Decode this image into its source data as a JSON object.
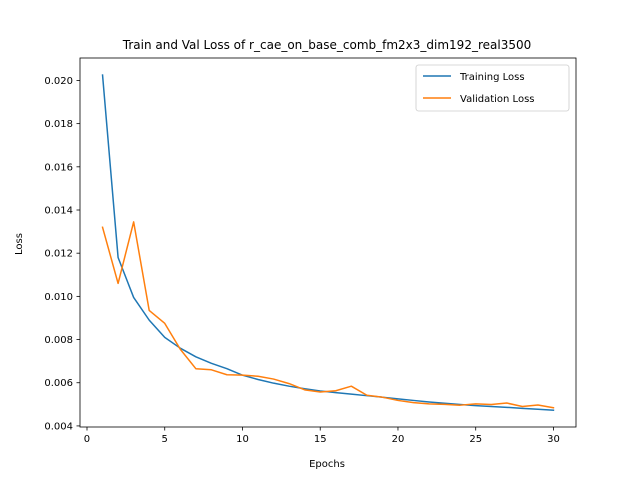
{
  "chart_data": {
    "type": "line",
    "title": "Train and Val Loss of r_cae_on_base_comb_fm2x3_dim192_real3500",
    "xlabel": "Epochs",
    "ylabel": "Loss",
    "xlim": [
      -0.45,
      31.45
    ],
    "ylim": [
      0.00395,
      0.02104
    ],
    "xticks": [
      0,
      5,
      10,
      15,
      20,
      25,
      30
    ],
    "yticks": [
      0.004,
      0.006,
      0.008,
      0.01,
      0.012,
      0.014,
      0.016,
      0.018,
      0.02
    ],
    "ytick_labels": [
      "0.004",
      "0.006",
      "0.008",
      "0.010",
      "0.012",
      "0.014",
      "0.016",
      "0.018",
      "0.020"
    ],
    "grid": false,
    "legend_position": "upper right",
    "x": [
      1,
      2,
      3,
      4,
      5,
      6,
      7,
      8,
      9,
      10,
      11,
      12,
      13,
      14,
      15,
      16,
      17,
      18,
      19,
      20,
      21,
      22,
      23,
      24,
      25,
      26,
      27,
      28,
      29,
      30
    ],
    "series": [
      {
        "name": "Training Loss",
        "color": "#1f77b4",
        "values": [
          0.02025,
          0.0118,
          0.00995,
          0.0089,
          0.0081,
          0.0076,
          0.0072,
          0.0069,
          0.00665,
          0.00635,
          0.00615,
          0.00598,
          0.00584,
          0.00572,
          0.00562,
          0.00554,
          0.00547,
          0.0054,
          0.00533,
          0.00525,
          0.00518,
          0.00511,
          0.00505,
          0.00499,
          0.00494,
          0.0049,
          0.00486,
          0.00481,
          0.00477,
          0.00473
        ]
      },
      {
        "name": "Validation Loss",
        "color": "#ff7f0e",
        "values": [
          0.0132,
          0.0106,
          0.01345,
          0.00935,
          0.00875,
          0.00755,
          0.00665,
          0.0066,
          0.00637,
          0.00635,
          0.0063,
          0.00617,
          0.00596,
          0.00567,
          0.00557,
          0.00563,
          0.00584,
          0.00542,
          0.00533,
          0.00518,
          0.00508,
          0.00502,
          0.005,
          0.00496,
          0.00502,
          0.00499,
          0.00506,
          0.0049,
          0.00497,
          0.00484
        ]
      }
    ]
  }
}
